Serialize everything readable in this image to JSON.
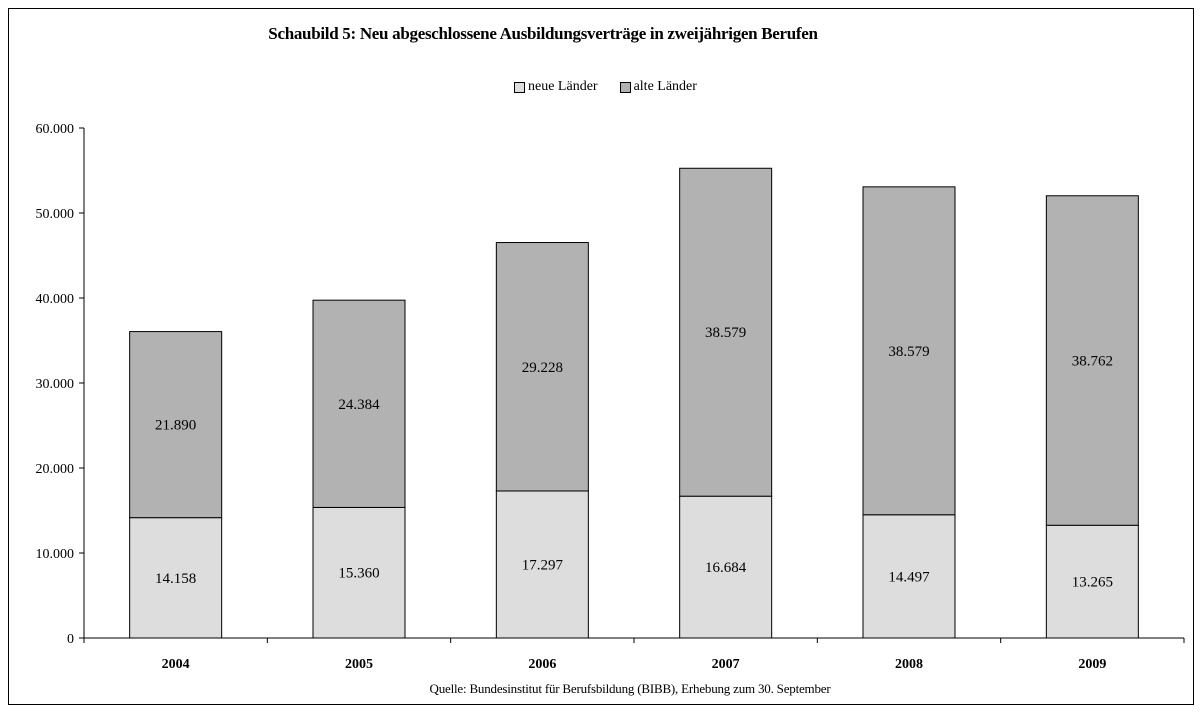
{
  "chart_data": {
    "type": "bar",
    "stacked": true,
    "title": "Schaubild 5: Neu abgeschlossene Ausbildungsverträge in zweijährigen Berufen",
    "categories": [
      "2004",
      "2005",
      "2006",
      "2007",
      "2008",
      "2009"
    ],
    "series": [
      {
        "name": "neue Länder",
        "color": "#dddddd",
        "values": [
          14158,
          15360,
          17297,
          16684,
          14497,
          13265
        ],
        "labels": [
          "14.158",
          "15.360",
          "17.297",
          "16.684",
          "14.497",
          "13.265"
        ]
      },
      {
        "name": "alte Länder",
        "color": "#b2b2b2",
        "values": [
          21890,
          24384,
          29228,
          38579,
          38579,
          38762
        ],
        "labels": [
          "21.890",
          "24.384",
          "29.228",
          "38.579",
          "38.579",
          "38.762"
        ]
      }
    ],
    "ylim": [
      0,
      60000
    ],
    "yticks": [
      0,
      10000,
      20000,
      30000,
      40000,
      50000,
      60000
    ],
    "ytick_labels": [
      "0",
      "10.000",
      "20.000",
      "30.000",
      "40.000",
      "50.000",
      "60.000"
    ],
    "legend_position": "top-center",
    "grid": false,
    "source": "Quelle: Bundesinstitut für Berufsbildung (BIBB), Erhebung zum 30. September"
  }
}
